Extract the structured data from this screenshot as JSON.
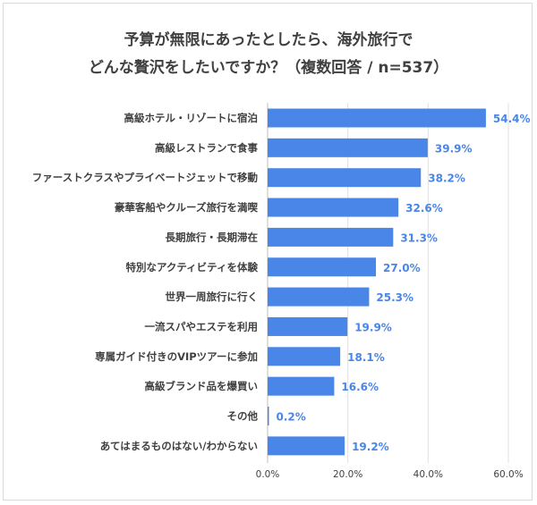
{
  "chart_data": {
    "type": "bar",
    "orientation": "horizontal",
    "title_lines": [
      "予算が無限にあったとしたら、海外旅行で",
      "どんな贅沢をしたいですか？（複数回答 / n=537）"
    ],
    "categories": [
      "高級ホテル・リゾートに宿泊",
      "高級レストランで食事",
      "ファーストクラスやプライベートジェットで移動",
      "豪華客船やクルーズ旅行を満喫",
      "長期旅行・長期滞在",
      "特別なアクティビティを体験",
      "世界一周旅行に行く",
      "一流スパやエステを利用",
      "専属ガイド付きのVIPツアーに参加",
      "高級ブランド品を爆買い",
      "その他",
      "あてはまるものはない/わからない"
    ],
    "values": [
      54.4,
      39.9,
      38.2,
      32.6,
      31.3,
      27.0,
      25.3,
      19.9,
      18.1,
      16.6,
      0.2,
      19.2
    ],
    "value_labels": [
      "54.4%",
      "39.9%",
      "38.2%",
      "32.6%",
      "31.3%",
      "27.0%",
      "25.3%",
      "19.9%",
      "18.1%",
      "16.6%",
      "0.2%",
      "19.2%"
    ],
    "xlim": [
      0,
      60
    ],
    "xticks": [
      0,
      20,
      40,
      60
    ],
    "xtick_labels": [
      "0.0%",
      "20.0%",
      "40.0%",
      "60.0%"
    ],
    "grid": true,
    "bar_color": "#4a86e8",
    "label_color": "#4a86e8",
    "grid_color": "#e0e0e0"
  }
}
